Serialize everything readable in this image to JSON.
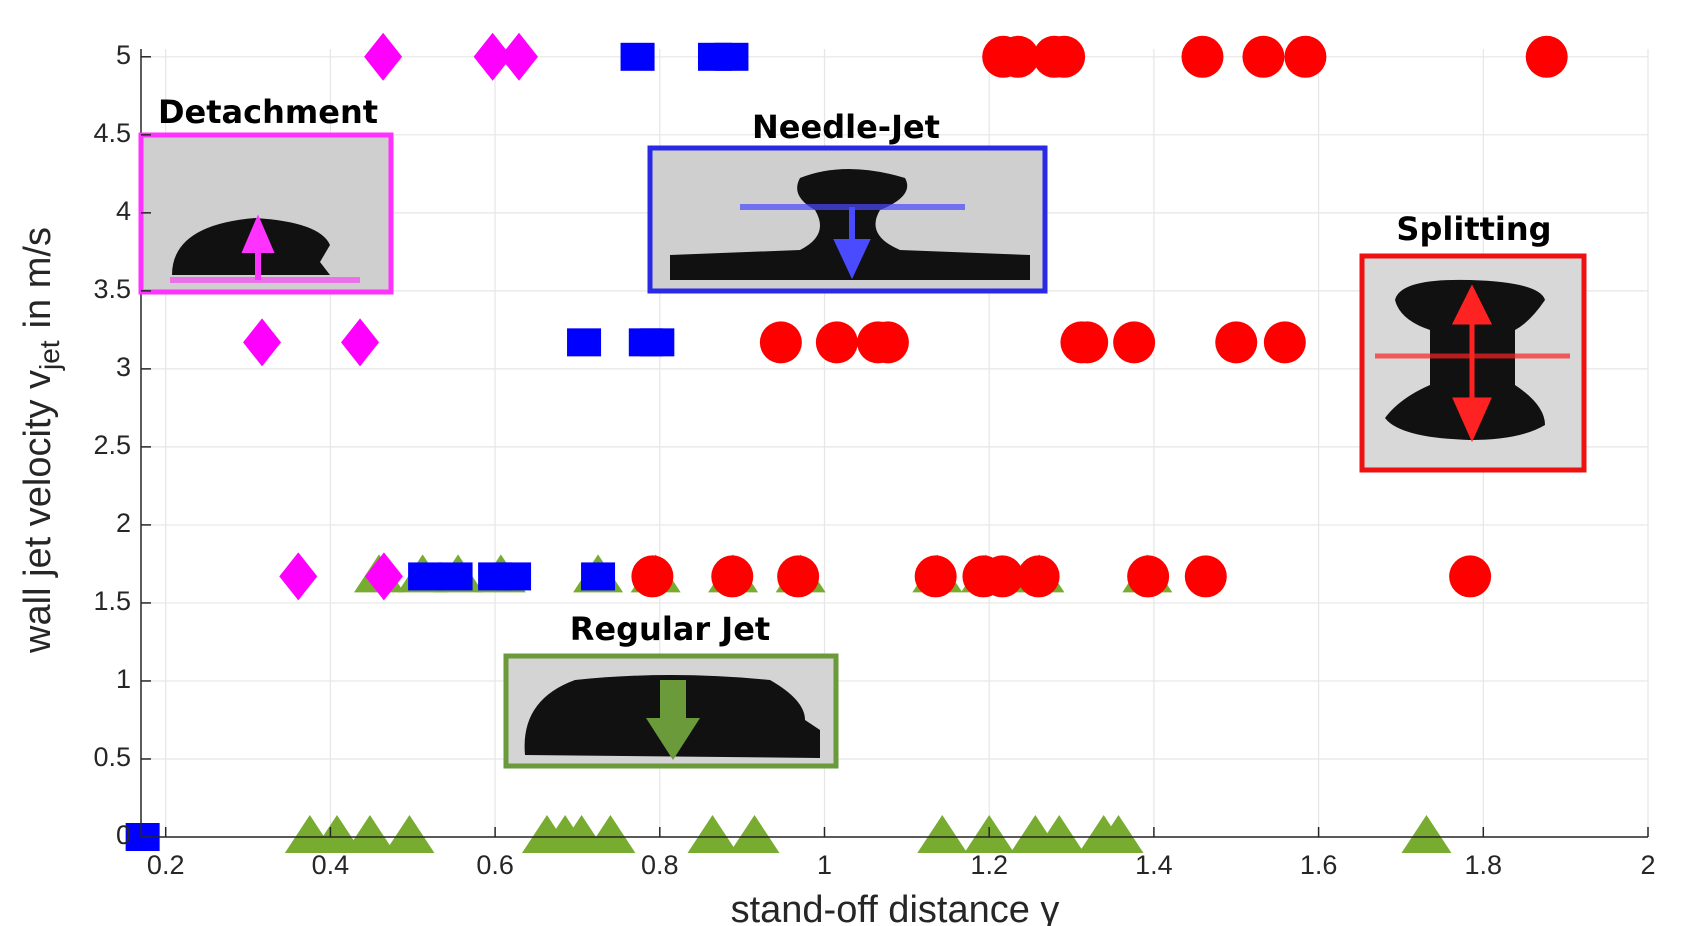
{
  "chart_data": {
    "type": "scatter",
    "xlabel": "stand-off distance γ",
    "ylabel": "wall jet velocity v",
    "ylabel_sub": "jet",
    "ylabel_unit": "in  m/s",
    "xlim": [
      0.17,
      2
    ],
    "ylim": [
      0,
      5.05
    ],
    "xticks": [
      0.2,
      0.4,
      0.6,
      0.8,
      1,
      1.2,
      1.4,
      1.6,
      1.8,
      2
    ],
    "yticks": [
      0,
      0.5,
      1,
      1.5,
      2,
      2.5,
      3,
      3.5,
      4,
      4.5,
      5
    ],
    "grid": true,
    "series": [
      {
        "name": "Regular Jet",
        "color": "#77ac30",
        "marker": "triangle",
        "x": [
          0.375,
          0.408,
          0.448,
          0.496,
          0.663,
          0.685,
          0.705,
          0.74,
          0.864,
          0.915,
          1.143,
          1.2,
          1.256,
          1.285,
          1.339,
          1.357,
          1.731,
          0.459,
          0.512,
          0.555,
          0.607,
          0.725,
          0.795,
          0.889,
          0.971,
          1.137,
          1.196,
          1.261,
          1.392
        ],
        "values": [
          0,
          0,
          0,
          0,
          0,
          0,
          0,
          0,
          0,
          0,
          0,
          0,
          0,
          0,
          0,
          0,
          0,
          1.67,
          1.67,
          1.67,
          1.67,
          1.67,
          1.67,
          1.67,
          1.67,
          1.67,
          1.67,
          1.67,
          1.67
        ]
      },
      {
        "name": "Detachment",
        "color": "#ff00ff",
        "marker": "diamond",
        "x": [
          0.464,
          0.597,
          0.629,
          0.317,
          0.436,
          0.361,
          0.465
        ],
        "values": [
          5,
          5,
          5,
          3.17,
          3.17,
          1.67,
          1.67
        ]
      },
      {
        "name": "Needle-Jet",
        "color": "#0000ff",
        "marker": "square",
        "x": [
          0.773,
          0.867,
          0.887,
          0.708,
          0.783,
          0.797,
          0.515,
          0.552,
          0.6,
          0.623,
          0.725,
          0.172
        ],
        "values": [
          5,
          5,
          5,
          3.17,
          3.17,
          3.17,
          1.67,
          1.67,
          1.67,
          1.67,
          1.67,
          0
        ]
      },
      {
        "name": "Splitting",
        "color": "#ff0000",
        "marker": "circle",
        "x": [
          1.217,
          1.235,
          1.279,
          1.291,
          1.459,
          1.533,
          1.584,
          1.877,
          0.947,
          1.015,
          1.065,
          1.077,
          1.312,
          1.319,
          1.376,
          1.5,
          1.559,
          0.791,
          0.888,
          0.968,
          1.135,
          1.193,
          1.216,
          1.26,
          1.393,
          1.463,
          1.784
        ],
        "values": [
          5,
          5,
          5,
          5,
          5,
          5,
          5,
          5,
          3.17,
          3.17,
          3.17,
          3.17,
          3.17,
          3.17,
          3.17,
          3.17,
          3.17,
          1.67,
          1.67,
          1.67,
          1.67,
          1.67,
          1.67,
          1.67,
          1.67,
          1.67,
          1.67
        ]
      }
    ]
  }
}
